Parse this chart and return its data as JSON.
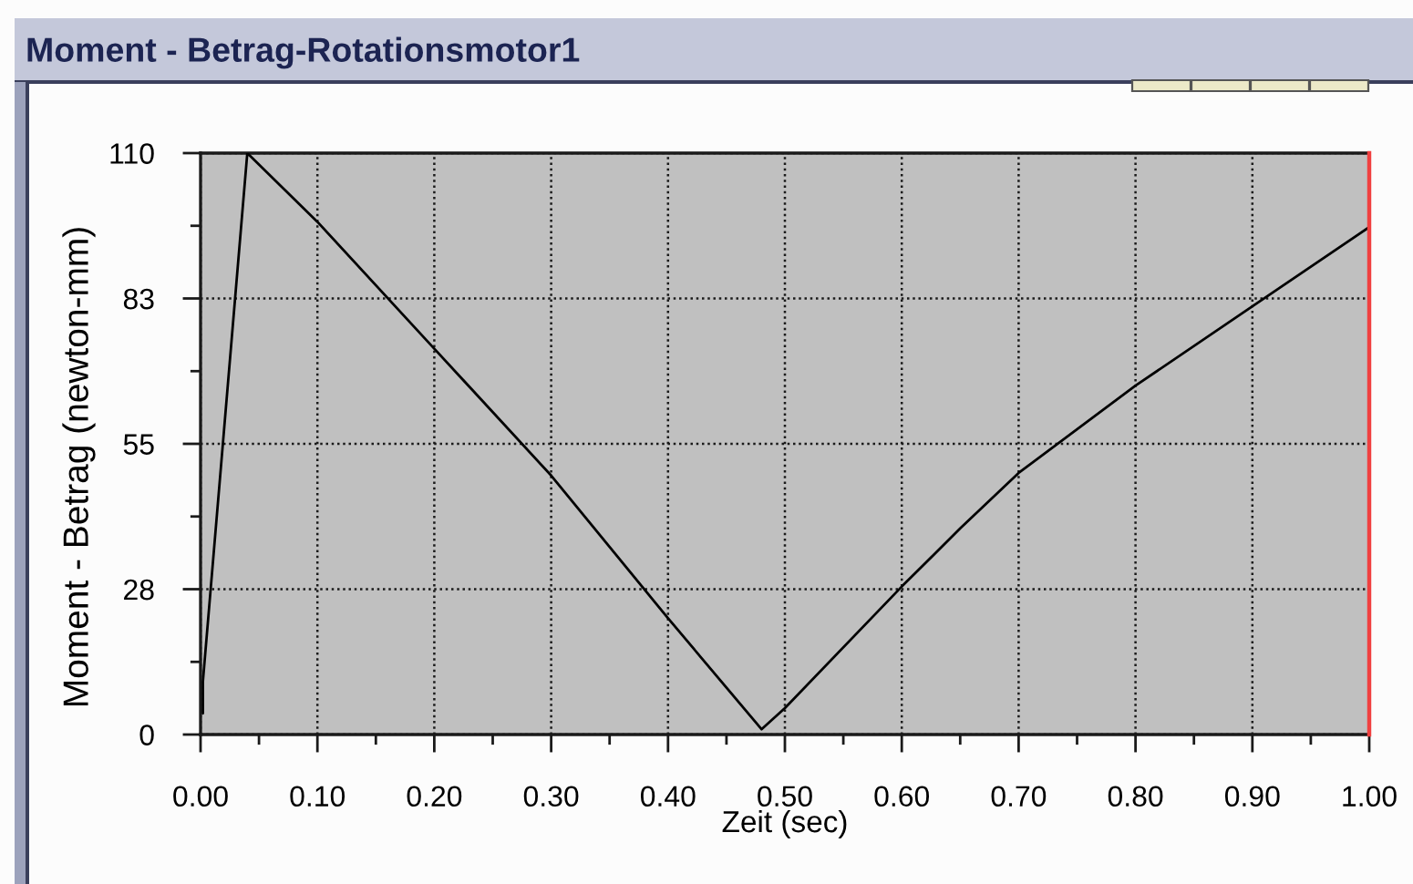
{
  "chart_data": {
    "type": "line",
    "title": "Moment - Betrag-Rotationsmotor1",
    "xlabel": "Zeit (sec)",
    "ylabel": "Moment - Betrag (newton-mm)",
    "x": [
      0.002,
      0.002,
      0.04,
      0.1,
      0.2,
      0.3,
      0.4,
      0.48,
      0.5,
      0.6,
      0.65,
      0.7,
      0.8,
      0.9,
      1.0
    ],
    "series": [
      {
        "color": "#000000",
        "values": [
          4,
          10,
          110,
          97,
          73,
          49,
          22,
          1,
          5,
          28,
          39,
          49.5,
          66,
          81,
          96
        ]
      }
    ],
    "xlim": [
      0,
      1
    ],
    "ylim": [
      0,
      110
    ],
    "xticks": [
      {
        "value": 0,
        "label": "0.00"
      },
      {
        "value": 0.05,
        "label": null
      },
      {
        "value": 0.1,
        "label": "0.10"
      },
      {
        "value": 0.15,
        "label": null
      },
      {
        "value": 0.2,
        "label": "0.20"
      },
      {
        "value": 0.25,
        "label": null
      },
      {
        "value": 0.3,
        "label": "0.30"
      },
      {
        "value": 0.35,
        "label": null
      },
      {
        "value": 0.4,
        "label": "0.40"
      },
      {
        "value": 0.45,
        "label": null
      },
      {
        "value": 0.5,
        "label": "0.50"
      },
      {
        "value": 0.55,
        "label": null
      },
      {
        "value": 0.6,
        "label": "0.60"
      },
      {
        "value": 0.65,
        "label": null
      },
      {
        "value": 0.7,
        "label": "0.70"
      },
      {
        "value": 0.75,
        "label": null
      },
      {
        "value": 0.8,
        "label": "0.80"
      },
      {
        "value": 0.85,
        "label": null
      },
      {
        "value": 0.9,
        "label": "0.90"
      },
      {
        "value": 0.95,
        "label": null
      },
      {
        "value": 1,
        "label": "1.00"
      }
    ],
    "yticks": [
      0,
      {
        "value": 13.75,
        "label": null
      },
      {
        "value": 27.5,
        "label": "28"
      },
      {
        "value": 41.25,
        "label": null
      },
      55,
      {
        "value": 68.75,
        "label": null
      },
      {
        "value": 82.5,
        "label": "83"
      },
      {
        "value": 96.25,
        "label": null
      },
      110
    ],
    "grid": true,
    "ref_lines": [
      {
        "axis": "x",
        "value": 1.0,
        "color": "#f04040"
      }
    ]
  }
}
